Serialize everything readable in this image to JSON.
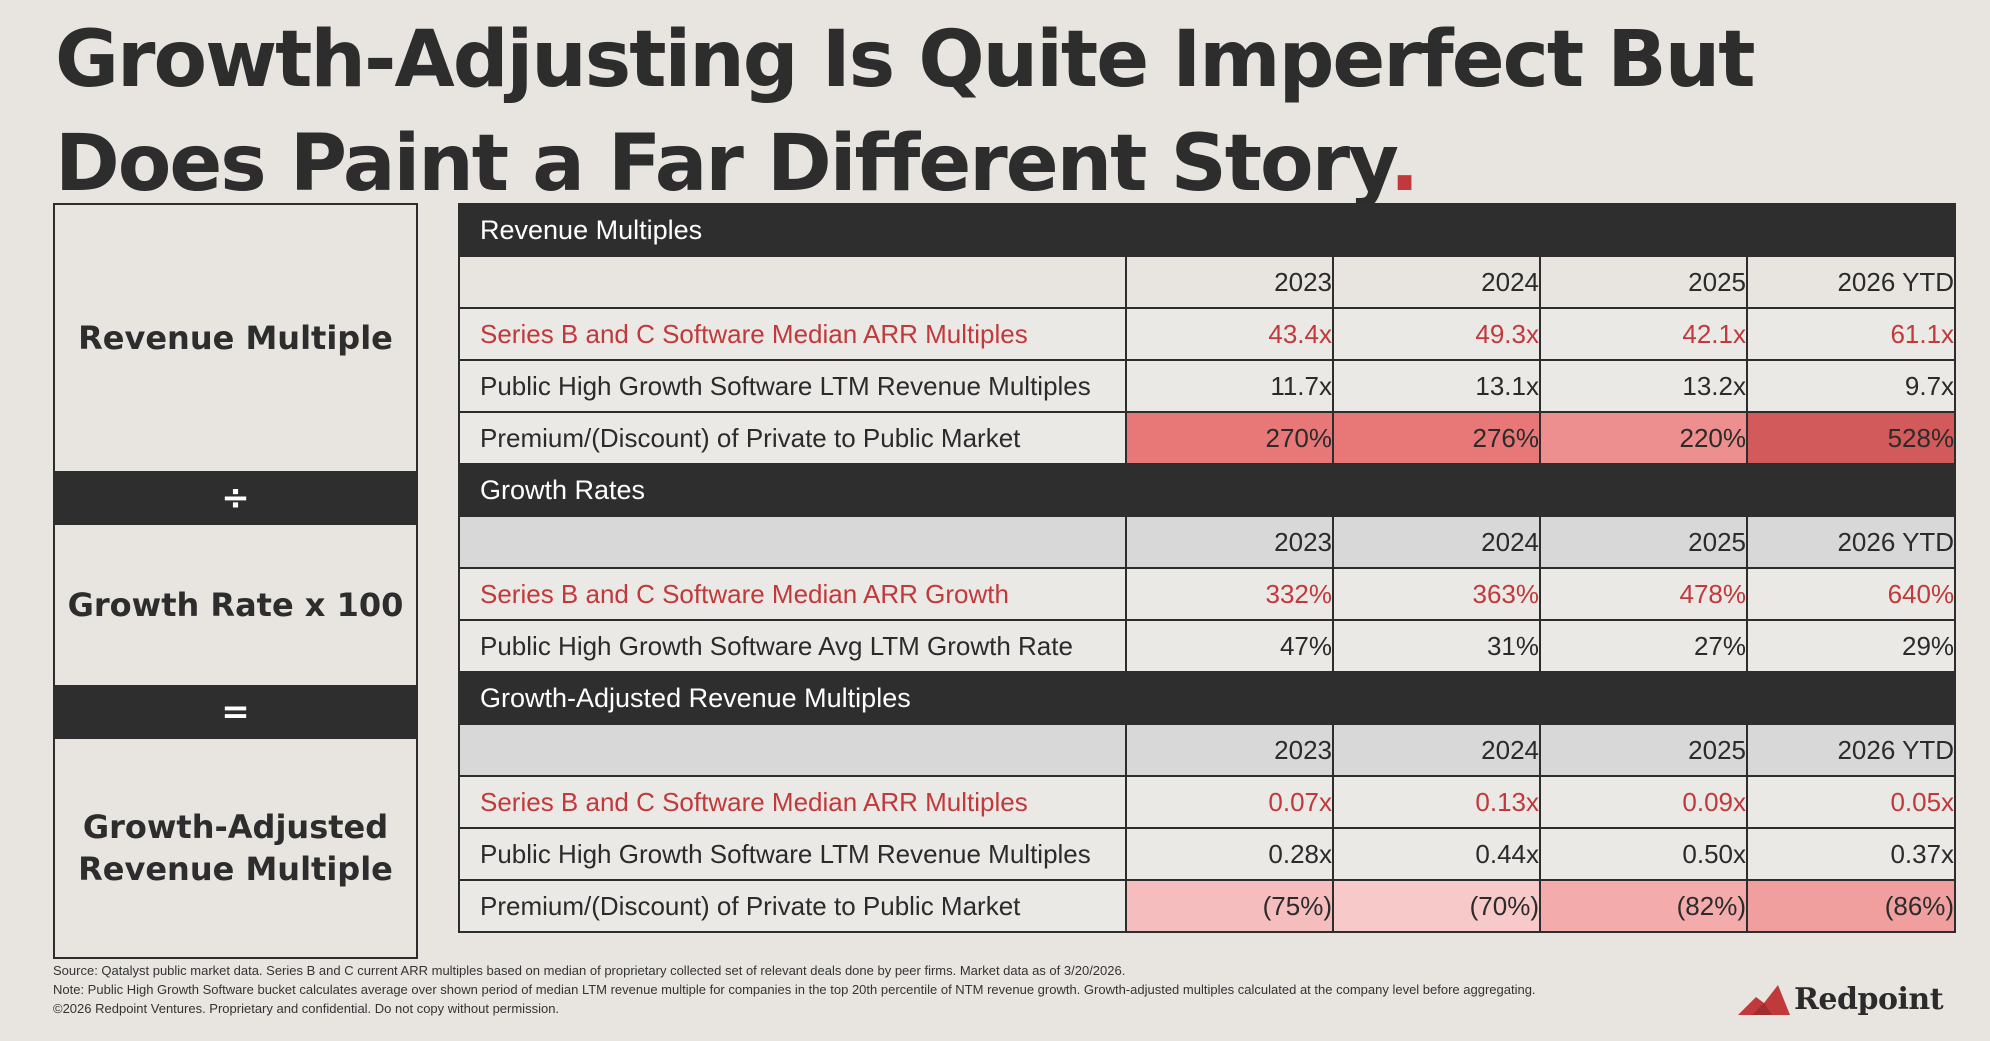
{
  "title": {
    "line1": "Growth-Adjusting Is Quite Imperfect But",
    "line2": "Does Paint a Far Different Story",
    "dot": "."
  },
  "formula": {
    "top": "Revenue Multiple",
    "divide": "÷",
    "middle": "Growth Rate x 100",
    "equals": "=",
    "bottom_line1": "Growth-Adjusted",
    "bottom_line2": "Revenue Multiple"
  },
  "colors": {
    "accent_red": "#c0393b",
    "dark": "#2e2e2e",
    "heat_270": "#e87877",
    "heat_276": "#e87877",
    "heat_220": "#ec8f8e",
    "heat_528": "#d25a5a",
    "heat_75": "#f5bdbd",
    "heat_70": "#f7c9c9",
    "heat_82": "#f3abab",
    "heat_86": "#f09e9e"
  },
  "table": {
    "revenue": {
      "header": "Revenue Multiples",
      "years": [
        "2023",
        "2024",
        "2025",
        "2026 YTD"
      ],
      "series_label": "Series B and C Software Median ARR Multiples",
      "series_values": [
        "43.4x",
        "49.3x",
        "42.1x",
        "61.1x"
      ],
      "public_label": "Public High Growth Software LTM Revenue Multiples",
      "public_values": [
        "11.7x",
        "13.1x",
        "13.2x",
        "9.7x"
      ],
      "premium_label": "Premium/(Discount) of Private to Public Market",
      "premium_values": [
        "270%",
        "276%",
        "220%",
        "528%"
      ]
    },
    "growth": {
      "header": "Growth Rates",
      "years": [
        "2023",
        "2024",
        "2025",
        "2026 YTD"
      ],
      "series_label": "Series B and C Software Median ARR Growth",
      "series_values": [
        "332%",
        "363%",
        "478%",
        "640%"
      ],
      "public_label": "Public High Growth Software Avg LTM Growth Rate",
      "public_values": [
        "47%",
        "31%",
        "27%",
        "29%"
      ]
    },
    "adjusted": {
      "header": "Growth-Adjusted Revenue Multiples",
      "years": [
        "2023",
        "2024",
        "2025",
        "2026 YTD"
      ],
      "series_label": "Series B and C Software Median ARR Multiples",
      "series_values": [
        "0.07x",
        "0.13x",
        "0.09x",
        "0.05x"
      ],
      "public_label": "Public High Growth Software LTM Revenue Multiples",
      "public_values": [
        "0.28x",
        "0.44x",
        "0.50x",
        "0.37x"
      ],
      "premium_label": "Premium/(Discount) of Private to Public Market",
      "premium_values": [
        "(75%)",
        "(70%)",
        "(82%)",
        "(86%)"
      ]
    }
  },
  "footer": {
    "source": "Source: Qatalyst public market data. Series B and C current ARR multiples based on median of proprietary collected set of relevant deals done by peer firms. Market data as of 3/20/2026.",
    "note": "Note: Public High Growth Software bucket calculates average over shown period of median LTM revenue multiple for companies in the top 20th percentile of NTM revenue growth. Growth-adjusted multiples calculated at the company level before aggregating.",
    "copyright": "©2026 Redpoint Ventures. Proprietary and confidential. Do not copy without permission."
  },
  "logo": {
    "text": "Redpoint",
    "icon": "mountain-icon"
  }
}
